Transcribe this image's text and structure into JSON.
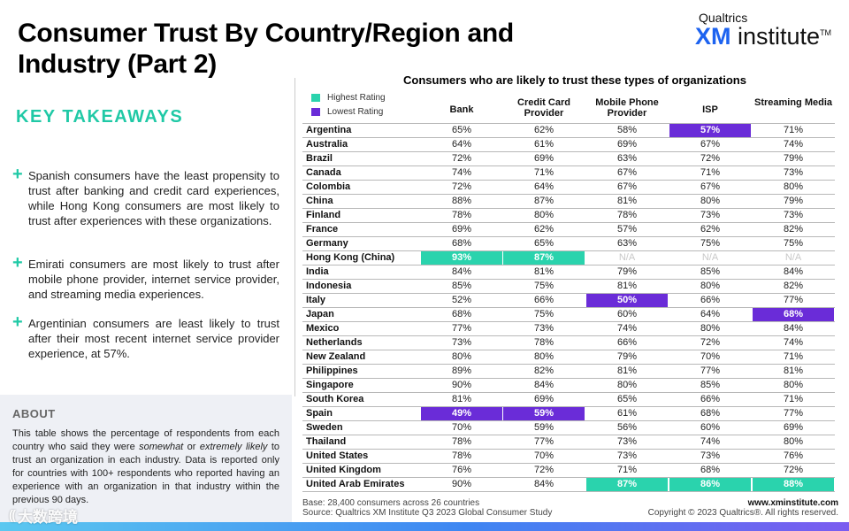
{
  "title": "Consumer Trust By Country/Region and Industry (Part 2)",
  "brand": {
    "top": "Qualtrics",
    "xm": "XM",
    "institute": " institute",
    "tm": "TM"
  },
  "takeaways": {
    "title": "KEY TAKEAWAYS",
    "items": [
      "Spanish consumers have the least propensity to trust after banking and credit card experiences, while Hong Kong consumers are most likely to trust after experiences with these organizations.",
      "Emirati consumers are most likely to trust after mobile phone provider, internet service provider, and streaming media experiences.",
      "Argentinian consumers are least likely to trust after their most recent internet service provider experience, at 57%."
    ]
  },
  "about": {
    "title": "ABOUT",
    "text_1": "This table shows the percentage of respondents from each country who said they were ",
    "em_1": "somewhat",
    "text_2": " or ",
    "em_2": "extremely likely",
    "text_3": " to trust an organization in each industry. Data is reported only for countries with 100+ respondents who reported having an experience with an organization in that industry within the previous 90 days."
  },
  "legend": {
    "high_label": "Highest Rating",
    "low_label": "Lowest Rating",
    "high_color": "#2ad3ad",
    "low_color": "#6a2cd8"
  },
  "chart_data": {
    "type": "table",
    "title": "Consumers who are likely to trust these types of organizations",
    "columns": [
      "Bank",
      "Credit Card Provider",
      "Mobile Phone Provider",
      "ISP",
      "Streaming Media"
    ],
    "rows": [
      {
        "country": "Argentina",
        "values": [
          "65%",
          "62%",
          "58%",
          "57%",
          "71%"
        ],
        "high": [],
        "low": [
          3
        ]
      },
      {
        "country": "Australia",
        "values": [
          "64%",
          "61%",
          "69%",
          "67%",
          "74%"
        ],
        "high": [],
        "low": []
      },
      {
        "country": "Brazil",
        "values": [
          "72%",
          "69%",
          "63%",
          "72%",
          "79%"
        ],
        "high": [],
        "low": []
      },
      {
        "country": "Canada",
        "values": [
          "74%",
          "71%",
          "67%",
          "71%",
          "73%"
        ],
        "high": [],
        "low": []
      },
      {
        "country": "Colombia",
        "values": [
          "72%",
          "64%",
          "67%",
          "67%",
          "80%"
        ],
        "high": [],
        "low": []
      },
      {
        "country": "China",
        "values": [
          "88%",
          "87%",
          "81%",
          "80%",
          "79%"
        ],
        "high": [],
        "low": []
      },
      {
        "country": "Finland",
        "values": [
          "78%",
          "80%",
          "78%",
          "73%",
          "73%"
        ],
        "high": [],
        "low": []
      },
      {
        "country": "France",
        "values": [
          "69%",
          "62%",
          "57%",
          "62%",
          "82%"
        ],
        "high": [],
        "low": []
      },
      {
        "country": "Germany",
        "values": [
          "68%",
          "65%",
          "63%",
          "75%",
          "75%"
        ],
        "high": [],
        "low": []
      },
      {
        "country": "Hong Kong (China)",
        "values": [
          "93%",
          "87%",
          "N/A",
          "N/A",
          "N/A"
        ],
        "high": [
          0,
          1
        ],
        "low": []
      },
      {
        "country": "India",
        "values": [
          "84%",
          "81%",
          "79%",
          "85%",
          "84%"
        ],
        "high": [],
        "low": []
      },
      {
        "country": "Indonesia",
        "values": [
          "85%",
          "75%",
          "81%",
          "80%",
          "82%"
        ],
        "high": [],
        "low": []
      },
      {
        "country": "Italy",
        "values": [
          "52%",
          "66%",
          "50%",
          "66%",
          "77%"
        ],
        "high": [],
        "low": [
          2
        ]
      },
      {
        "country": "Japan",
        "values": [
          "68%",
          "75%",
          "60%",
          "64%",
          "68%"
        ],
        "high": [],
        "low": [
          4
        ]
      },
      {
        "country": "Mexico",
        "values": [
          "77%",
          "73%",
          "74%",
          "80%",
          "84%"
        ],
        "high": [],
        "low": []
      },
      {
        "country": "Netherlands",
        "values": [
          "73%",
          "78%",
          "66%",
          "72%",
          "74%"
        ],
        "high": [],
        "low": []
      },
      {
        "country": "New Zealand",
        "values": [
          "80%",
          "80%",
          "79%",
          "70%",
          "71%"
        ],
        "high": [],
        "low": []
      },
      {
        "country": "Philippines",
        "values": [
          "89%",
          "82%",
          "81%",
          "77%",
          "81%"
        ],
        "high": [],
        "low": []
      },
      {
        "country": "Singapore",
        "values": [
          "90%",
          "84%",
          "80%",
          "85%",
          "80%"
        ],
        "high": [],
        "low": []
      },
      {
        "country": "South Korea",
        "values": [
          "81%",
          "69%",
          "65%",
          "66%",
          "71%"
        ],
        "high": [],
        "low": []
      },
      {
        "country": "Spain",
        "values": [
          "49%",
          "59%",
          "61%",
          "68%",
          "77%"
        ],
        "high": [],
        "low": [
          0,
          1
        ]
      },
      {
        "country": "Sweden",
        "values": [
          "70%",
          "59%",
          "56%",
          "60%",
          "69%"
        ],
        "high": [],
        "low": []
      },
      {
        "country": "Thailand",
        "values": [
          "78%",
          "77%",
          "73%",
          "74%",
          "80%"
        ],
        "high": [],
        "low": []
      },
      {
        "country": "United States",
        "values": [
          "78%",
          "70%",
          "73%",
          "73%",
          "76%"
        ],
        "high": [],
        "low": []
      },
      {
        "country": "United Kingdom",
        "values": [
          "76%",
          "72%",
          "71%",
          "68%",
          "72%"
        ],
        "high": [],
        "low": []
      },
      {
        "country": "United Arab Emirates",
        "values": [
          "90%",
          "84%",
          "87%",
          "86%",
          "88%"
        ],
        "high": [
          2,
          3,
          4
        ],
        "low": []
      }
    ]
  },
  "footer": {
    "base": "Base: 28,400 consumers across 26 countries",
    "source": "Source: Qualtrics XM Institute Q3 2023 Global Consumer Study",
    "website": "www.xminstitute.com",
    "copyright": "Copyright © 2023 Qualtrics®. All rights reserved."
  },
  "watermark": {
    "logo": "((",
    "text": "大数跨境"
  }
}
